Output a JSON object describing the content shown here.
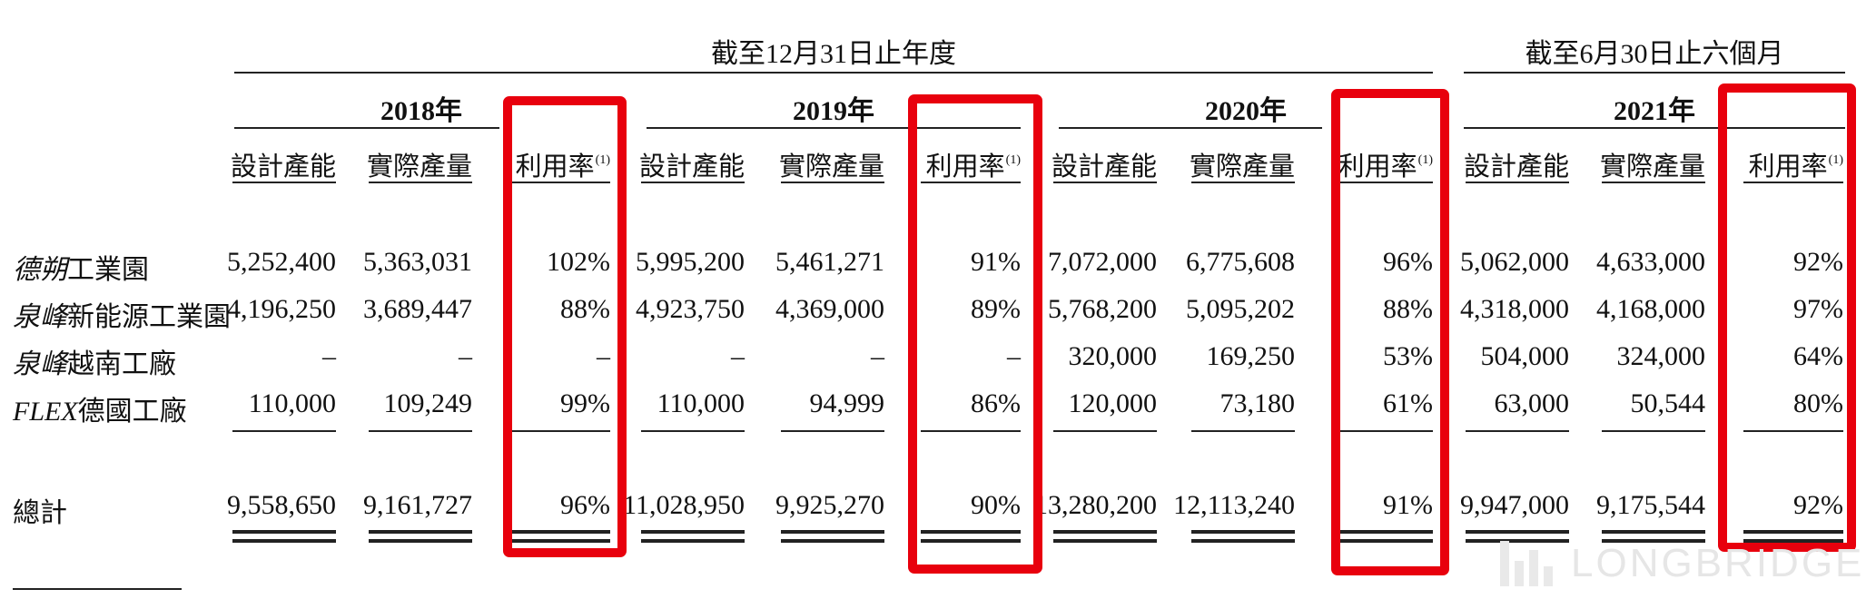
{
  "header": {
    "group1": "截至12月31日止年度",
    "group2": "截至6月30日止六個月"
  },
  "years": [
    "2018年",
    "2019年",
    "2020年",
    "2021年"
  ],
  "columns": {
    "design": "設計產能",
    "actual": "實際產量",
    "util": "利用率",
    "util_note": "(1)"
  },
  "rows": [
    {
      "label_italic": "德朔",
      "label_rest": "工業園",
      "cells": [
        "5,252,400",
        "5,363,031",
        "102%",
        "5,995,200",
        "5,461,271",
        "91%",
        "7,072,000",
        "6,775,608",
        "96%",
        "5,062,000",
        "4,633,000",
        "92%"
      ]
    },
    {
      "label_italic": "泉峰",
      "label_rest": "新能源工業園",
      "cells": [
        "4,196,250",
        "3,689,447",
        "88%",
        "4,923,750",
        "4,369,000",
        "89%",
        "5,768,200",
        "5,095,202",
        "88%",
        "4,318,000",
        "4,168,000",
        "97%"
      ]
    },
    {
      "label_italic": "泉峰",
      "label_rest": "越南工廠",
      "cells": [
        "–",
        "–",
        "–",
        "–",
        "–",
        "–",
        "320,000",
        "169,250",
        "53%",
        "504,000",
        "324,000",
        "64%"
      ]
    },
    {
      "label_italic": "FLEX",
      "label_rest": "德國工廠",
      "cells": [
        "110,000",
        "109,249",
        "99%",
        "110,000",
        "94,999",
        "86%",
        "120,000",
        "73,180",
        "61%",
        "63,000",
        "50,544",
        "80%"
      ]
    }
  ],
  "total": {
    "label": "總計",
    "cells": [
      "9,558,650",
      "9,161,727",
      "96%",
      "11,028,950",
      "9,925,270",
      "90%",
      "13,280,200",
      "12,113,240",
      "91%",
      "9,947,000",
      "9,175,544",
      "92%"
    ]
  },
  "watermark": "LONGBRIDGE",
  "colors": {
    "highlight": "#e8000d",
    "rule": "#222222",
    "watermark": "#e6e6e6"
  }
}
